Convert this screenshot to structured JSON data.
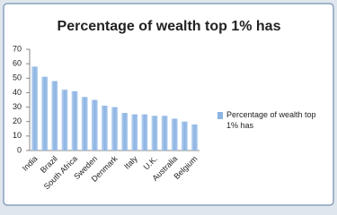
{
  "chart_data": {
    "type": "bar",
    "title": "Percentage of wealth top 1% has",
    "categories": [
      "India",
      null,
      "Brazil",
      null,
      "South Africa",
      null,
      "Sweden",
      null,
      "Denmark",
      null,
      "Italy",
      null,
      "U.K.",
      null,
      "Australia",
      null,
      "Belgium"
    ],
    "series": [
      {
        "name": "Percentage of wealth top 1% has",
        "color": "#8db4e2",
        "values": [
          58,
          51,
          48,
          42,
          41,
          37,
          35,
          31,
          30,
          26,
          25,
          25,
          24,
          24,
          22,
          20,
          18
        ]
      }
    ],
    "ylim": [
      0,
      70
    ],
    "yticks": [
      0,
      10,
      20,
      30,
      40,
      50,
      60,
      70
    ],
    "grid": false,
    "legend": "right"
  }
}
